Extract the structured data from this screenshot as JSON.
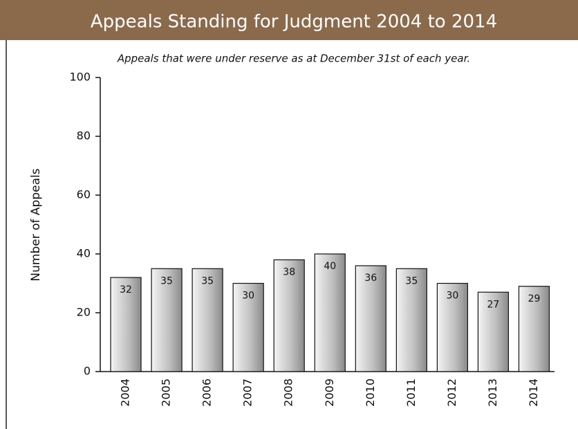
{
  "chart_data": {
    "type": "bar",
    "title": "Appeals Standing for Judgment 2004 to 2014",
    "subtitle": "Appeals that were under reserve as at December 31st of each year.",
    "y_label": "Number of Appeals",
    "categories": [
      "2004",
      "2005",
      "2006",
      "2007",
      "2008",
      "2009",
      "2010",
      "2011",
      "2012",
      "2013",
      "2014"
    ],
    "values": [
      32,
      35,
      35,
      30,
      38,
      40,
      36,
      35,
      30,
      27,
      29
    ],
    "color": "#bdbdbd",
    "ylim": [
      0,
      100
    ],
    "yticks": [
      0,
      20,
      40,
      60,
      80,
      100
    ],
    "grid": false
  }
}
